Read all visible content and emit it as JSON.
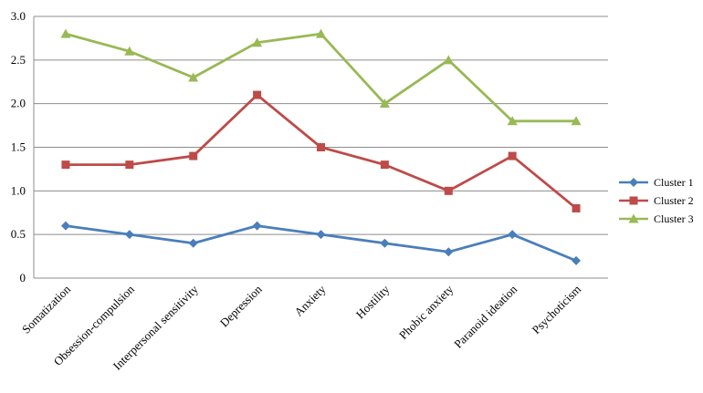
{
  "chart_data": {
    "type": "line",
    "title": "",
    "xlabel": "",
    "ylabel": "",
    "ylim": [
      0,
      3.0
    ],
    "yticks": [
      "0",
      "0.5",
      "1.0",
      "1.5",
      "2.0",
      "2.5",
      "3.0"
    ],
    "ytick_values": [
      0,
      0.5,
      1.0,
      1.5,
      2.0,
      2.5,
      3.0
    ],
    "grid": true,
    "legend_position": "right",
    "categories": [
      "Somatization",
      "Obsession-compulsion",
      "Interpersonal sensitivity",
      "Depression",
      "Anxiety",
      "Hostility",
      "Phobic anxiety",
      "Paranoid ideation",
      "Psychoticism"
    ],
    "series": [
      {
        "name": "Cluster 1",
        "color": "#4a7ebb",
        "marker": "diamond",
        "values": [
          0.6,
          0.5,
          0.4,
          0.6,
          0.5,
          0.4,
          0.3,
          0.5,
          0.2
        ]
      },
      {
        "name": "Cluster 2",
        "color": "#be4b48",
        "marker": "square",
        "values": [
          1.3,
          1.3,
          1.4,
          2.1,
          1.5,
          1.3,
          1.0,
          1.4,
          0.8
        ]
      },
      {
        "name": "Cluster 3",
        "color": "#98b954",
        "marker": "triangle",
        "values": [
          2.8,
          2.6,
          2.3,
          2.7,
          2.8,
          2.0,
          2.5,
          1.8,
          1.8
        ]
      }
    ]
  }
}
